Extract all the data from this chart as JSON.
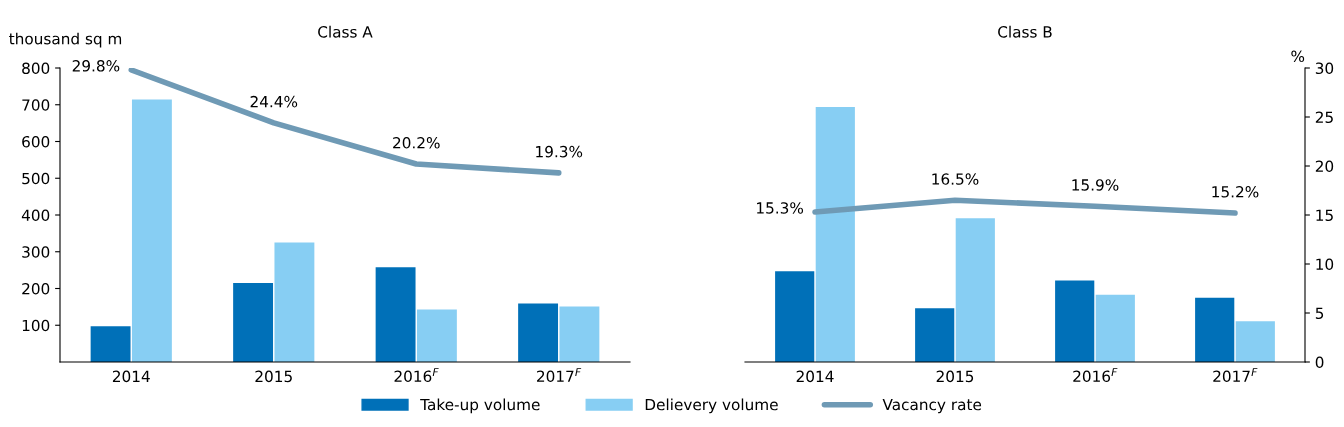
{
  "chart_data": [
    {
      "type": "bar",
      "title": "Class A",
      "ylabel": "thousand sq m",
      "categories": [
        "2014",
        "2015",
        "2016$^{F}$",
        "2017$^{F}$"
      ],
      "series": [
        {
          "name": "Take-up volume",
          "color": "#0070b8",
          "values": [
            97,
            215,
            258,
            159
          ]
        },
        {
          "name": "Delievery volume",
          "color": "#87cef3",
          "values": [
            714,
            325,
            143,
            151
          ]
        },
        {
          "name": "Vacancy rate",
          "type": "line",
          "axis": "y2",
          "color": "#6f9ab5",
          "values": [
            29.8,
            24.4,
            20.2,
            19.3
          ],
          "value_labels": [
            "29.8%",
            "24.4%",
            "20.2%",
            "19.3%"
          ]
        }
      ],
      "ylim": [
        0,
        800
      ],
      "yticks": [
        100,
        200,
        300,
        400,
        500,
        600,
        700,
        800
      ],
      "y2lim": [
        0,
        30
      ],
      "tick_labels": [
        "x",
        "y"
      ],
      "legend": "bottom"
    },
    {
      "type": "bar",
      "title": "Class B",
      "y2label": "%",
      "categories": [
        "2014",
        "2015",
        "2016$^{F}$",
        "2017$^{F}$"
      ],
      "series": [
        {
          "name": "Take-up volume",
          "color": "#0070b8",
          "values": [
            247,
            146,
            222,
            175
          ]
        },
        {
          "name": "Delievery volume",
          "color": "#87cef3",
          "values": [
            694,
            391,
            183,
            111
          ]
        },
        {
          "name": "Vacancy rate",
          "type": "line",
          "axis": "y2",
          "color": "#6f9ab5",
          "values": [
            15.3,
            16.5,
            15.9,
            15.2
          ],
          "value_labels": [
            "15.3%",
            "16.5%",
            "15.9%",
            "15.2%"
          ]
        }
      ],
      "ylim": [
        0,
        800
      ],
      "y2lim": [
        0,
        30
      ],
      "y2ticks": [
        0,
        5,
        10,
        15,
        20,
        25,
        30
      ],
      "tick_labels": [
        "x",
        "y2"
      ],
      "legend": "bottom"
    }
  ]
}
